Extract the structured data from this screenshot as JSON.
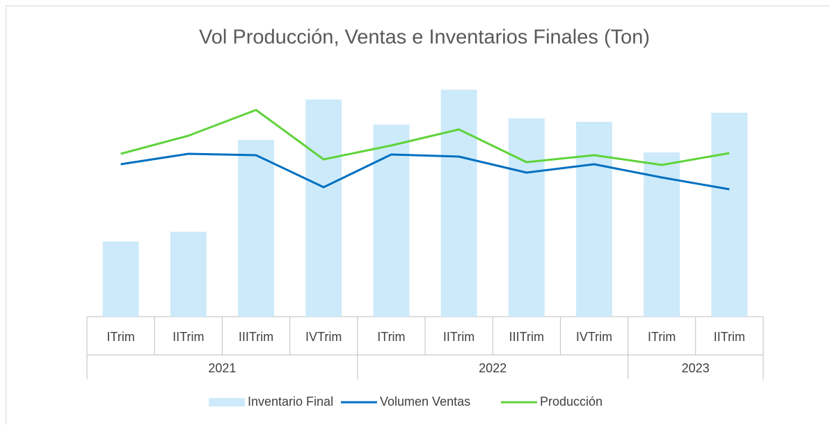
{
  "chart_data": {
    "type": "bar-line",
    "title": "Vol Producción, Ventas e Inventarios Finales (Ton)",
    "groups": [
      {
        "name": "2021",
        "categories": [
          "ITrim",
          "IITrim",
          "IIITrim",
          "IVTrim"
        ]
      },
      {
        "name": "2022",
        "categories": [
          "ITrim",
          "IITrim",
          "IIITrim",
          "IVTrim"
        ]
      },
      {
        "name": "2023",
        "categories": [
          "ITrim",
          "IITrim"
        ]
      }
    ],
    "ylim": [
      0,
      350
    ],
    "series": [
      {
        "name": "Inventario Final",
        "type": "bar",
        "color": "#cdeafa",
        "values": [
          108,
          122,
          254,
          312,
          276,
          326,
          285,
          280,
          236,
          293
        ]
      },
      {
        "name": "Volumen Ventas",
        "type": "line",
        "color": "#0070c0",
        "values": [
          219,
          234,
          232,
          186,
          233,
          230,
          207,
          219,
          200,
          183
        ]
      },
      {
        "name": "Producción",
        "type": "line",
        "color": "#5fd33b",
        "values": [
          234,
          260,
          297,
          226,
          246,
          269,
          222,
          232,
          218,
          235
        ]
      }
    ],
    "legend": "bottom"
  }
}
